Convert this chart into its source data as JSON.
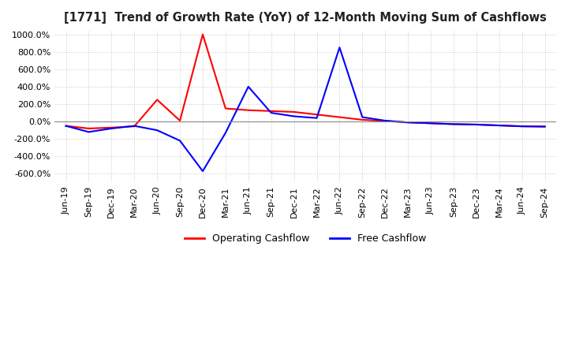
{
  "title": "[1771]  Trend of Growth Rate (YoY) of 12-Month Moving Sum of Cashflows",
  "ylim": [
    -700,
    1050
  ],
  "yticks": [
    -600,
    -400,
    -200,
    0,
    200,
    400,
    600,
    800,
    1000
  ],
  "legend": [
    "Operating Cashflow",
    "Free Cashflow"
  ],
  "legend_colors": [
    "#ff0000",
    "#0000ff"
  ],
  "background_color": "#ffffff",
  "grid_color": "#c8c8c8",
  "x_labels": [
    "Jun-19",
    "Sep-19",
    "Dec-19",
    "Mar-20",
    "Jun-20",
    "Sep-20",
    "Dec-20",
    "Mar-21",
    "Jun-21",
    "Sep-21",
    "Dec-21",
    "Mar-22",
    "Jun-22",
    "Sep-22",
    "Dec-22",
    "Mar-23",
    "Jun-23",
    "Sep-23",
    "Dec-23",
    "Mar-24",
    "Jun-24",
    "Sep-24"
  ],
  "operating_cashflow": [
    -50,
    -80,
    -70,
    -55,
    250,
    10,
    1000,
    150,
    130,
    120,
    110,
    80,
    50,
    20,
    5,
    -10,
    -20,
    -30,
    -35,
    -45,
    -55,
    -55
  ],
  "free_cashflow": [
    -50,
    -120,
    -80,
    -50,
    -100,
    -220,
    -570,
    -130,
    400,
    100,
    60,
    40,
    850,
    50,
    10,
    -10,
    -20,
    -30,
    -35,
    -45,
    -55,
    -60
  ]
}
